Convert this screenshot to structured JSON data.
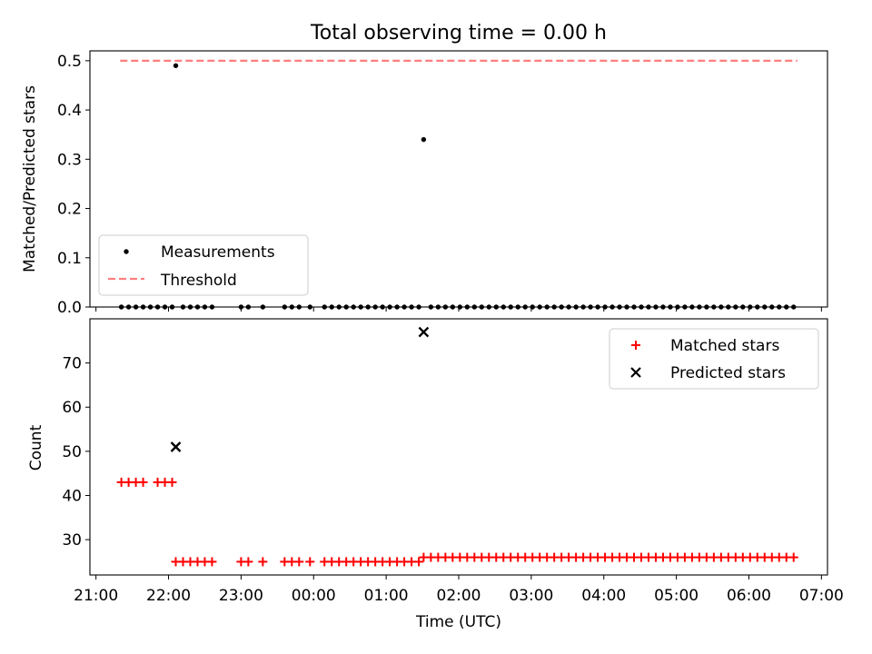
{
  "chart_data": [
    {
      "type": "scatter",
      "title": "Total observing time = 0.00 h",
      "xlabel": "",
      "ylabel": "Matched/Predicted stars",
      "xlim": [
        "20:55",
        "07:05"
      ],
      "ylim": [
        0,
        0.52
      ],
      "yticks": [
        "0.0",
        "0.1",
        "0.2",
        "0.3",
        "0.4",
        "0.5"
      ],
      "legend_position": "lower-left",
      "threshold": {
        "name": "Threshold",
        "value": 0.5,
        "x_range": [
          "21:20",
          "06:40"
        ],
        "color": "#ff7f7f",
        "style": "dashed"
      },
      "series": [
        {
          "name": "Measurements",
          "color": "#000000",
          "marker": "dot",
          "points": [
            [
              "21:21",
              0
            ],
            [
              "21:27",
              0
            ],
            [
              "21:33",
              0
            ],
            [
              "21:39",
              0
            ],
            [
              "21:45",
              0
            ],
            [
              "21:51",
              0
            ],
            [
              "21:57",
              0
            ],
            [
              "22:03",
              0
            ],
            [
              "22:06",
              0.49
            ],
            [
              "22:12",
              0
            ],
            [
              "22:18",
              0
            ],
            [
              "22:24",
              0
            ],
            [
              "22:30",
              0
            ],
            [
              "22:36",
              0
            ],
            [
              "23:00",
              0
            ],
            [
              "23:06",
              0
            ],
            [
              "23:18",
              0
            ],
            [
              "23:36",
              0
            ],
            [
              "23:42",
              0
            ],
            [
              "23:48",
              0
            ],
            [
              "23:57",
              0
            ],
            [
              "00:09",
              0
            ],
            [
              "00:15",
              0
            ],
            [
              "00:21",
              0
            ],
            [
              "00:27",
              0
            ],
            [
              "00:33",
              0
            ],
            [
              "00:39",
              0
            ],
            [
              "00:45",
              0
            ],
            [
              "00:51",
              0
            ],
            [
              "00:57",
              0
            ],
            [
              "01:03",
              0
            ],
            [
              "01:09",
              0
            ],
            [
              "01:15",
              0
            ],
            [
              "01:21",
              0
            ],
            [
              "01:27",
              0
            ],
            [
              "01:31",
              0.34
            ],
            [
              "01:37",
              0
            ],
            [
              "01:43",
              0
            ],
            [
              "01:49",
              0
            ],
            [
              "01:55",
              0
            ],
            [
              "02:01",
              0
            ],
            [
              "02:07",
              0
            ],
            [
              "02:13",
              0
            ],
            [
              "02:19",
              0
            ],
            [
              "02:25",
              0
            ],
            [
              "02:31",
              0
            ],
            [
              "02:37",
              0
            ],
            [
              "02:43",
              0
            ],
            [
              "02:49",
              0
            ],
            [
              "02:55",
              0
            ],
            [
              "03:01",
              0
            ],
            [
              "03:07",
              0
            ],
            [
              "03:13",
              0
            ],
            [
              "03:19",
              0
            ],
            [
              "03:25",
              0
            ],
            [
              "03:31",
              0
            ],
            [
              "03:37",
              0
            ],
            [
              "03:43",
              0
            ],
            [
              "03:49",
              0
            ],
            [
              "03:55",
              0
            ],
            [
              "04:01",
              0
            ],
            [
              "04:07",
              0
            ],
            [
              "04:13",
              0
            ],
            [
              "04:19",
              0
            ],
            [
              "04:25",
              0
            ],
            [
              "04:31",
              0
            ],
            [
              "04:37",
              0
            ],
            [
              "04:43",
              0
            ],
            [
              "04:49",
              0
            ],
            [
              "04:55",
              0
            ],
            [
              "05:01",
              0
            ],
            [
              "05:07",
              0
            ],
            [
              "05:13",
              0
            ],
            [
              "05:19",
              0
            ],
            [
              "05:25",
              0
            ],
            [
              "05:31",
              0
            ],
            [
              "05:37",
              0
            ],
            [
              "05:43",
              0
            ],
            [
              "05:49",
              0
            ],
            [
              "05:55",
              0
            ],
            [
              "06:01",
              0
            ],
            [
              "06:07",
              0
            ],
            [
              "06:13",
              0
            ],
            [
              "06:19",
              0
            ],
            [
              "06:25",
              0
            ],
            [
              "06:31",
              0
            ],
            [
              "06:37",
              0
            ]
          ]
        }
      ]
    },
    {
      "type": "scatter",
      "title": "",
      "xlabel": "Time (UTC)",
      "ylabel": "Count",
      "xlim": [
        "20:55",
        "07:05"
      ],
      "ylim": [
        22,
        80
      ],
      "yticks": [
        "30",
        "40",
        "50",
        "60",
        "70"
      ],
      "xticks": [
        "21:00",
        "22:00",
        "23:00",
        "00:00",
        "01:00",
        "02:00",
        "03:00",
        "04:00",
        "05:00",
        "06:00",
        "07:00"
      ],
      "legend_position": "upper-right",
      "series": [
        {
          "name": "Matched stars",
          "color": "#ff0000",
          "marker": "plus",
          "points": [
            [
              "21:21",
              43
            ],
            [
              "21:27",
              43
            ],
            [
              "21:33",
              43
            ],
            [
              "21:39",
              43
            ],
            [
              "21:51",
              43
            ],
            [
              "21:57",
              43
            ],
            [
              "22:03",
              43
            ],
            [
              "22:06",
              25
            ],
            [
              "22:12",
              25
            ],
            [
              "22:18",
              25
            ],
            [
              "22:24",
              25
            ],
            [
              "22:30",
              25
            ],
            [
              "22:36",
              25
            ],
            [
              "23:00",
              25
            ],
            [
              "23:06",
              25
            ],
            [
              "23:18",
              25
            ],
            [
              "23:36",
              25
            ],
            [
              "23:42",
              25
            ],
            [
              "23:48",
              25
            ],
            [
              "23:57",
              25
            ],
            [
              "00:09",
              25
            ],
            [
              "00:15",
              25
            ],
            [
              "00:21",
              25
            ],
            [
              "00:27",
              25
            ],
            [
              "00:33",
              25
            ],
            [
              "00:39",
              25
            ],
            [
              "00:45",
              25
            ],
            [
              "00:51",
              25
            ],
            [
              "00:57",
              25
            ],
            [
              "01:03",
              25
            ],
            [
              "01:09",
              25
            ],
            [
              "01:15",
              25
            ],
            [
              "01:21",
              25
            ],
            [
              "01:27",
              25
            ],
            [
              "01:31",
              26
            ],
            [
              "01:37",
              26
            ],
            [
              "01:43",
              26
            ],
            [
              "01:49",
              26
            ],
            [
              "01:55",
              26
            ],
            [
              "02:01",
              26
            ],
            [
              "02:07",
              26
            ],
            [
              "02:13",
              26
            ],
            [
              "02:19",
              26
            ],
            [
              "02:25",
              26
            ],
            [
              "02:31",
              26
            ],
            [
              "02:37",
              26
            ],
            [
              "02:43",
              26
            ],
            [
              "02:49",
              26
            ],
            [
              "02:55",
              26
            ],
            [
              "03:01",
              26
            ],
            [
              "03:07",
              26
            ],
            [
              "03:13",
              26
            ],
            [
              "03:19",
              26
            ],
            [
              "03:25",
              26
            ],
            [
              "03:31",
              26
            ],
            [
              "03:37",
              26
            ],
            [
              "03:43",
              26
            ],
            [
              "03:49",
              26
            ],
            [
              "03:55",
              26
            ],
            [
              "04:01",
              26
            ],
            [
              "04:07",
              26
            ],
            [
              "04:13",
              26
            ],
            [
              "04:19",
              26
            ],
            [
              "04:25",
              26
            ],
            [
              "04:31",
              26
            ],
            [
              "04:37",
              26
            ],
            [
              "04:43",
              26
            ],
            [
              "04:49",
              26
            ],
            [
              "04:55",
              26
            ],
            [
              "05:01",
              26
            ],
            [
              "05:07",
              26
            ],
            [
              "05:13",
              26
            ],
            [
              "05:19",
              26
            ],
            [
              "05:25",
              26
            ],
            [
              "05:31",
              26
            ],
            [
              "05:37",
              26
            ],
            [
              "05:43",
              26
            ],
            [
              "05:49",
              26
            ],
            [
              "05:55",
              26
            ],
            [
              "06:01",
              26
            ],
            [
              "06:07",
              26
            ],
            [
              "06:13",
              26
            ],
            [
              "06:19",
              26
            ],
            [
              "06:25",
              26
            ],
            [
              "06:31",
              26
            ],
            [
              "06:37",
              26
            ]
          ]
        },
        {
          "name": "Predicted stars",
          "color": "#000000",
          "marker": "x",
          "points": [
            [
              "22:06",
              51
            ],
            [
              "01:31",
              77
            ]
          ]
        }
      ]
    }
  ]
}
